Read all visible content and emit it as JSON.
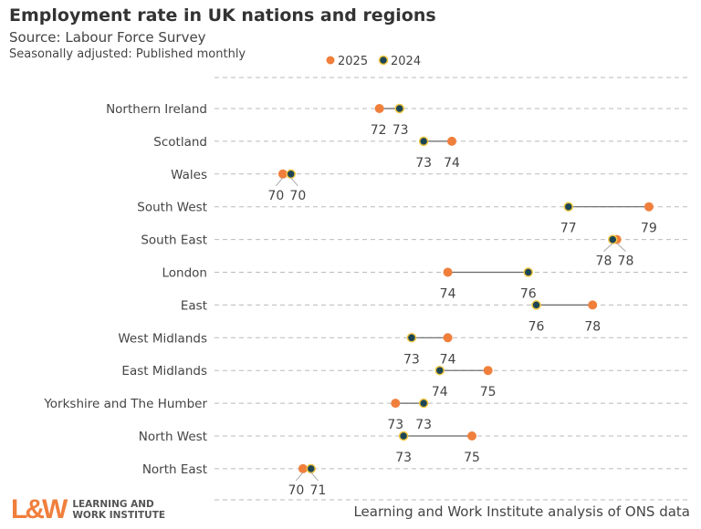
{
  "chart_data": {
    "type": "dumbbell",
    "title": "Employment rate in UK nations and regions",
    "subtitle": "Source: Labour Force Survey",
    "note": "Seasonally adjusted: Published monthly",
    "caption": "Learning and Work Institute analysis of ONS data",
    "xlim": [
      68.2,
      80.0
    ],
    "grid": "horizontal dashed",
    "legend_placement": "top",
    "series": [
      {
        "name": "2025",
        "color": "#f07f3c"
      },
      {
        "name": "2024",
        "color": "#1d4654",
        "border": "#f2c744"
      }
    ],
    "categories": [
      "Northern Ireland",
      "Scotland",
      "Wales",
      "South West",
      "South East",
      "London",
      "East",
      "West Midlands",
      "East Midlands",
      "Yorkshire and The Humber",
      "North West",
      "North East"
    ],
    "values_2025": [
      72.3,
      74.1,
      69.9,
      79.0,
      78.2,
      74.0,
      77.6,
      74.0,
      75.0,
      72.7,
      74.6,
      70.4
    ],
    "values_2024": [
      72.8,
      73.4,
      70.1,
      77.0,
      78.1,
      76.0,
      76.2,
      73.1,
      73.8,
      73.4,
      72.9,
      70.6
    ],
    "labels_2025": [
      "72",
      "74",
      "70",
      "79",
      "78",
      "74",
      "78",
      "74",
      "75",
      "73",
      "75",
      "70"
    ],
    "labels_2024": [
      "73",
      "73",
      "70",
      "77",
      "78",
      "76",
      "76",
      "73",
      "74",
      "73",
      "73",
      "71"
    ]
  },
  "logo": {
    "mark": "L&W",
    "line1": "LEARNING AND",
    "line2": "WORK INSTITUTE"
  }
}
